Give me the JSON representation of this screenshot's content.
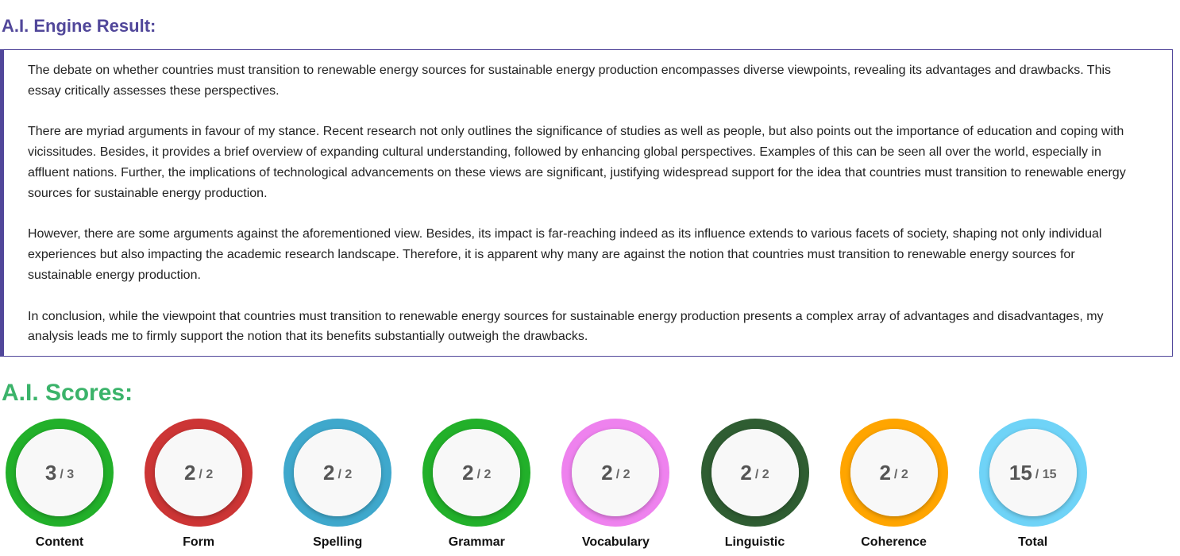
{
  "header": {
    "title": "A.I. Engine Result:"
  },
  "essay": {
    "paragraphs": [
      "The debate on whether countries must transition to renewable energy sources for sustainable energy production encompasses diverse viewpoints, revealing its advantages and drawbacks. This essay critically assesses these perspectives.",
      "There are myriad arguments in favour of my stance. Recent research not only outlines the significance of studies as well as people, but also points out the importance of education and coping with vicissitudes. Besides, it provides a brief overview of expanding cultural understanding, followed by enhancing global perspectives. Examples of this can be seen all over the world, especially in affluent nations. Further, the implications of technological advancements on these views are significant, justifying widespread support for the idea that countries must transition to renewable energy sources for sustainable energy production.",
      "However, there are some arguments against the aforementioned view. Besides, its impact is far-reaching indeed as its influence extends to various facets of society, shaping not only individual experiences but also impacting the academic research landscape. Therefore, it is apparent why many are against the notion that countries must transition to renewable energy sources for sustainable energy production.",
      "In conclusion, while the viewpoint that countries must transition to renewable energy sources for sustainable energy production presents a complex array of advantages and disadvantages, my analysis leads me to firmly support the notion that its benefits substantially outweigh the drawbacks."
    ]
  },
  "scores": {
    "title": "A.I. Scores:",
    "items": [
      {
        "label": "Content",
        "score": "3",
        "max": "/ 3",
        "color": "#22b02a"
      },
      {
        "label": "Form",
        "score": "2",
        "max": "/ 2",
        "color": "#cc3535"
      },
      {
        "label": "Spelling",
        "score": "2",
        "max": "/ 2",
        "color": "#3fa8cc"
      },
      {
        "label": "Grammar",
        "score": "2",
        "max": "/ 2",
        "color": "#22b02a"
      },
      {
        "label": "Vocabulary",
        "score": "2",
        "max": "/ 2",
        "color": "#ee82ee"
      },
      {
        "label": "Linguistic",
        "score": "2",
        "max": "/ 2",
        "color": "#2f5d32"
      },
      {
        "label": "Coherence",
        "score": "2",
        "max": "/ 2",
        "color": "#ffa500"
      },
      {
        "label": "Total",
        "score": "15",
        "max": "/ 15",
        "color": "#6fd3f7"
      }
    ]
  }
}
